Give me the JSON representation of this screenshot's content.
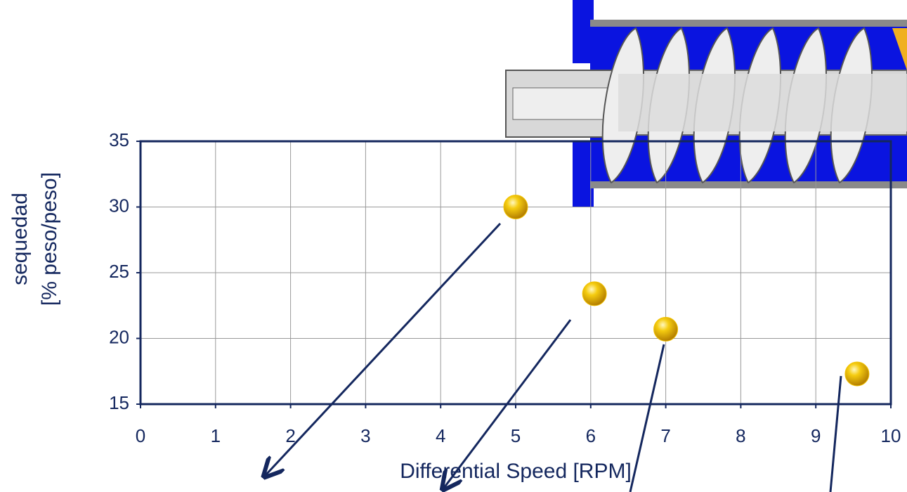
{
  "chart_data": {
    "type": "scatter",
    "x_label": "Differential Speed  [RPM]",
    "y_label": [
      "sequedad",
      "[% peso/peso]"
    ],
    "series": [
      {
        "x": [
          5,
          6.05,
          7,
          9.55
        ],
        "values": [
          30,
          23.4,
          20.7,
          17.3
        ],
        "color": "#f2c200"
      }
    ],
    "xlim": [
      0,
      10
    ],
    "xticks": [
      0,
      1,
      2,
      3,
      4,
      5,
      6,
      7,
      8,
      9,
      10
    ],
    "ylim": [
      15,
      35
    ],
    "yticks": [
      15,
      20,
      25,
      30,
      35
    ],
    "grid": true
  }
}
